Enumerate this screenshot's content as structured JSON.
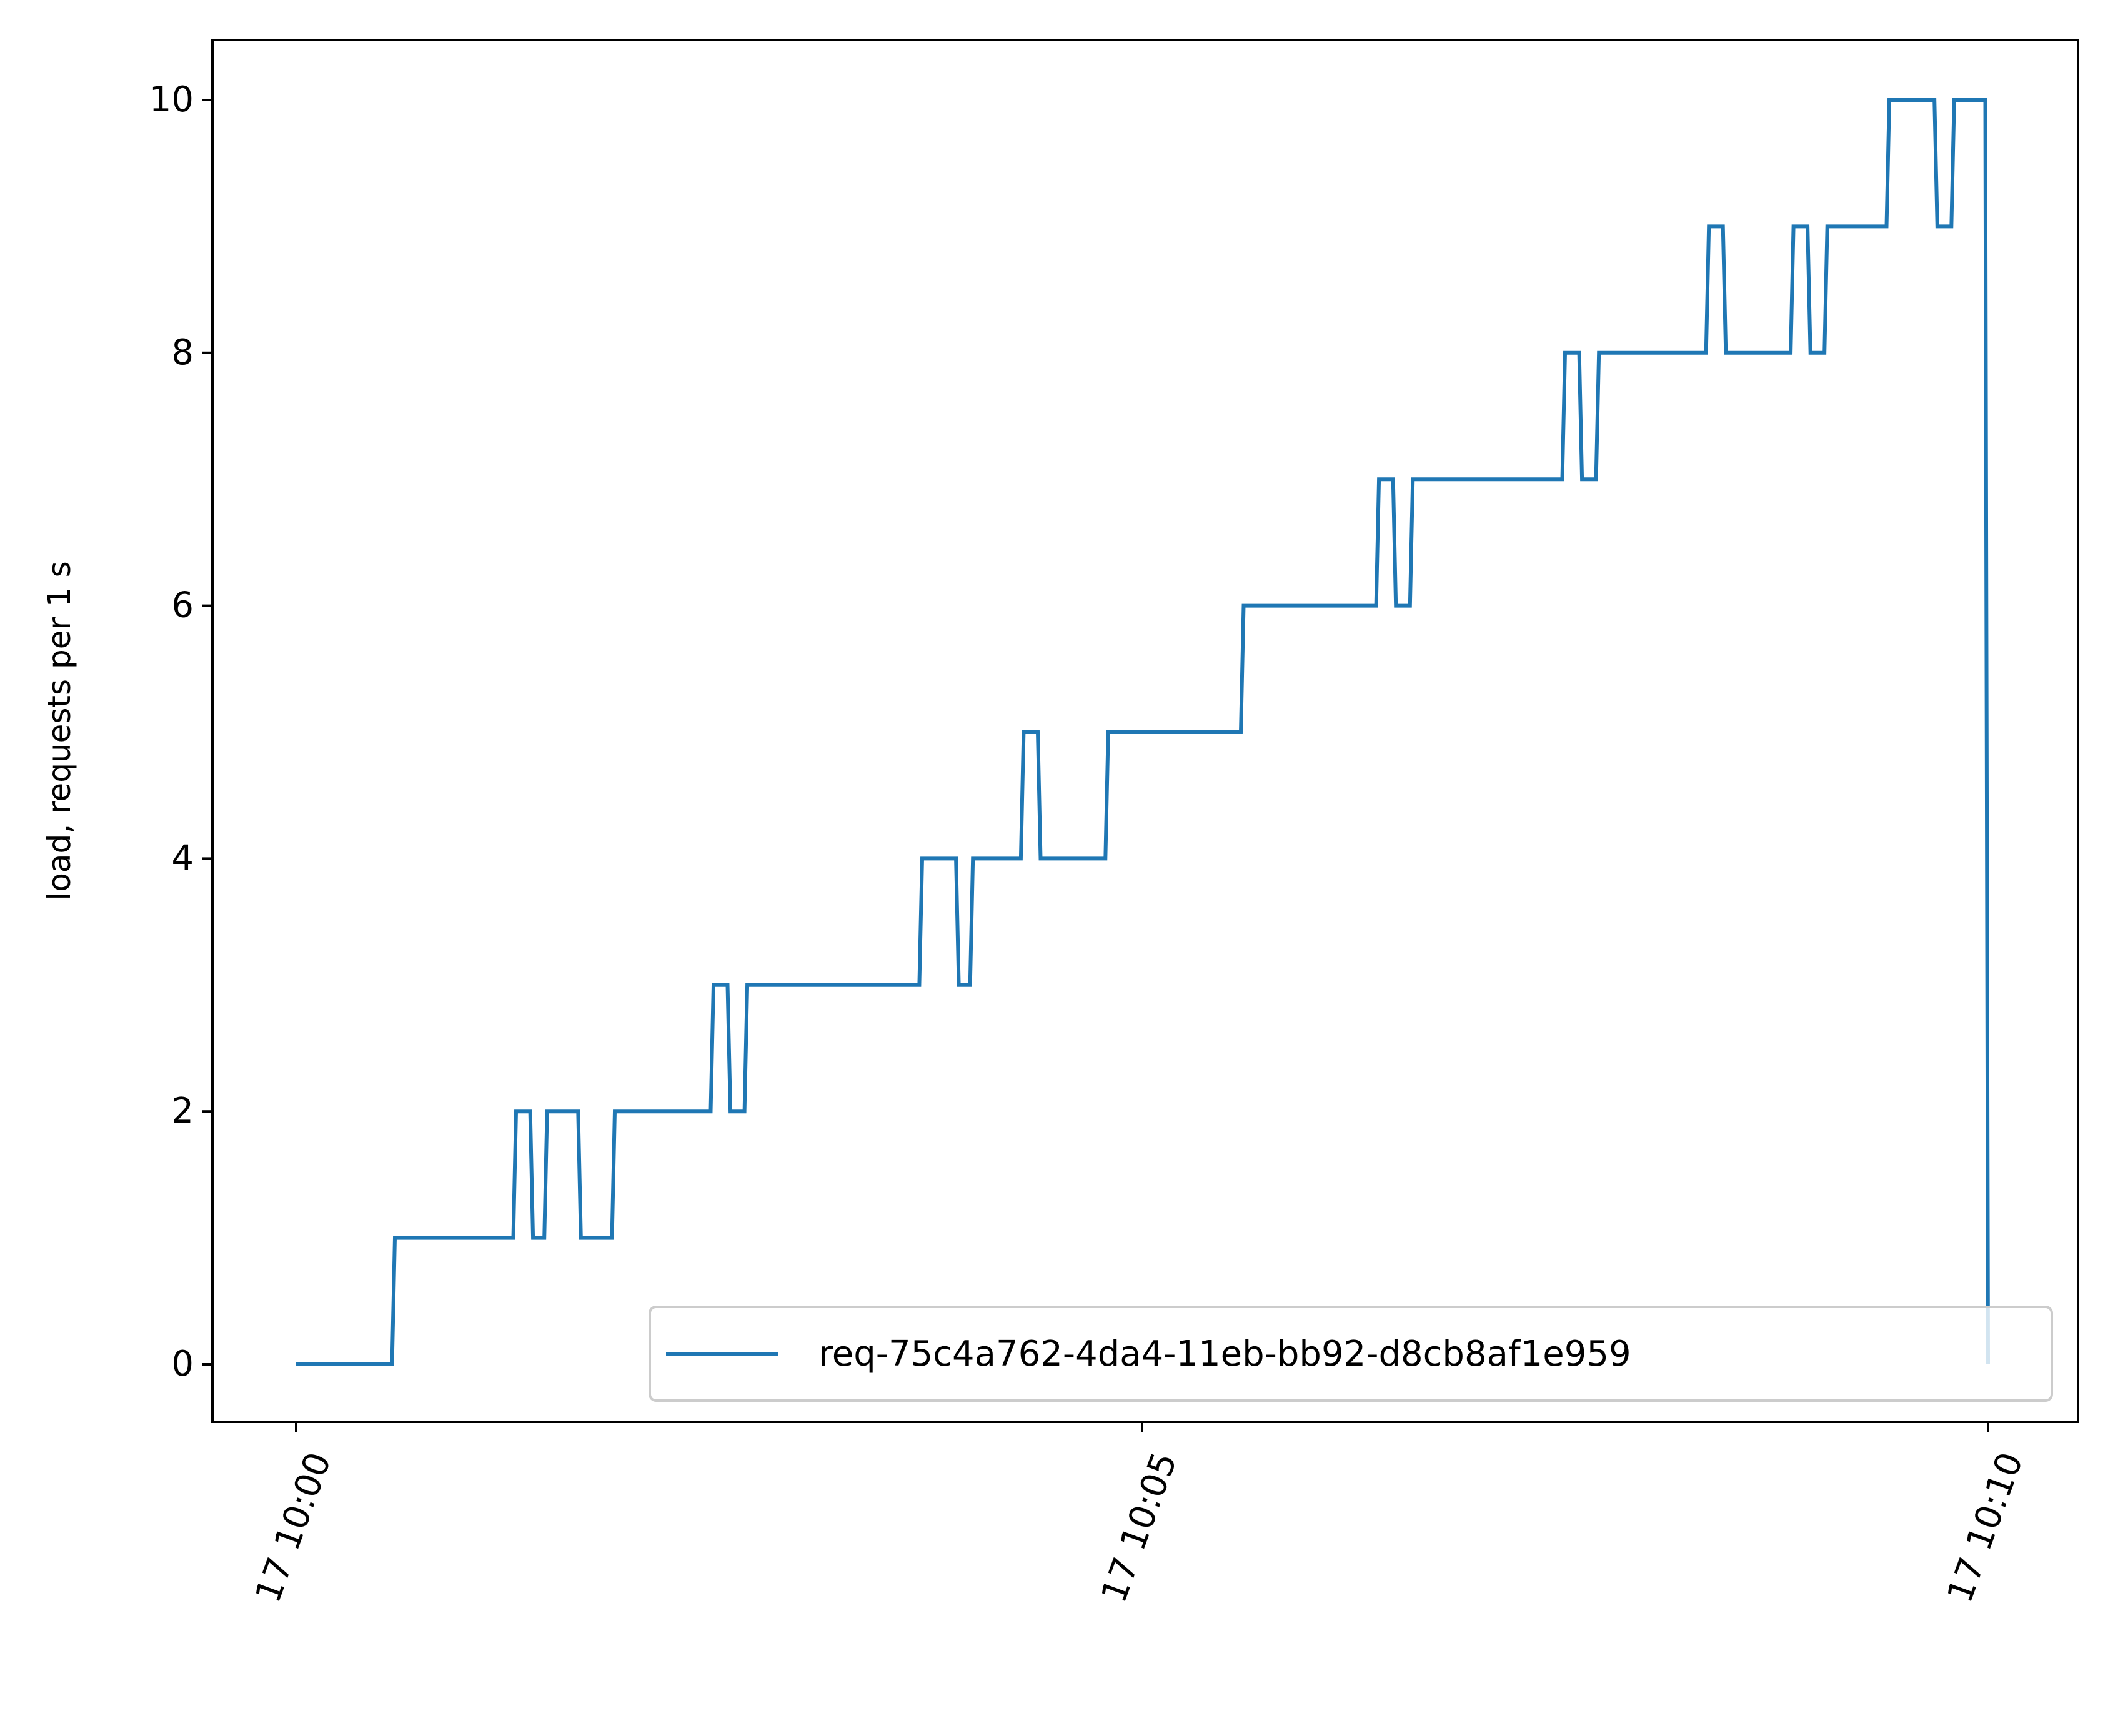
{
  "chart_data": {
    "type": "line",
    "title": "",
    "xlabel": "",
    "ylabel": "load, requests per 1 s",
    "xlim": [
      "10:00:00",
      "10:10:00"
    ],
    "ylim": [
      0,
      10
    ],
    "grid": false,
    "legend_position": "lower right",
    "x_ticks": [
      {
        "time": "10:00:00",
        "label": "17 10:00"
      },
      {
        "time": "10:05:00",
        "label": "17 10:05"
      },
      {
        "time": "10:10:00",
        "label": "17 10:10"
      }
    ],
    "y_ticks": [
      {
        "value": 0,
        "label": "0"
      },
      {
        "value": 2,
        "label": "2"
      },
      {
        "value": 4,
        "label": "4"
      },
      {
        "value": 6,
        "label": "6"
      },
      {
        "value": 8,
        "label": "8"
      },
      {
        "value": 10,
        "label": "10"
      }
    ],
    "series": [
      {
        "name": "req-75c4a762-4da4-11eb-bb92-d8cb8af1e959",
        "color": "#1f77b4",
        "step": true,
        "points": [
          [
            "10:00:00",
            0
          ],
          [
            "10:00:34",
            0
          ],
          [
            "10:00:35",
            1
          ],
          [
            "10:01:17",
            1
          ],
          [
            "10:01:18",
            2
          ],
          [
            "10:01:23",
            2
          ],
          [
            "10:01:24",
            1
          ],
          [
            "10:01:28",
            1
          ],
          [
            "10:01:29",
            2
          ],
          [
            "10:01:40",
            2
          ],
          [
            "10:01:41",
            1
          ],
          [
            "10:01:52",
            1
          ],
          [
            "10:01:53",
            2
          ],
          [
            "10:02:27",
            2
          ],
          [
            "10:02:28",
            3
          ],
          [
            "10:02:33",
            3
          ],
          [
            "10:02:34",
            2
          ],
          [
            "10:02:39",
            2
          ],
          [
            "10:02:40",
            3
          ],
          [
            "10:03:41",
            3
          ],
          [
            "10:03:42",
            4
          ],
          [
            "10:03:54",
            4
          ],
          [
            "10:03:55",
            3
          ],
          [
            "10:03:59",
            3
          ],
          [
            "10:04:00",
            4
          ],
          [
            "10:04:17",
            4
          ],
          [
            "10:04:18",
            5
          ],
          [
            "10:04:23",
            5
          ],
          [
            "10:04:24",
            4
          ],
          [
            "10:04:47",
            4
          ],
          [
            "10:04:48",
            5
          ],
          [
            "10:05:35",
            5
          ],
          [
            "10:05:36",
            6
          ],
          [
            "10:06:23",
            6
          ],
          [
            "10:06:24",
            7
          ],
          [
            "10:06:29",
            7
          ],
          [
            "10:06:30",
            6
          ],
          [
            "10:06:35",
            6
          ],
          [
            "10:06:36",
            7
          ],
          [
            "10:07:29",
            7
          ],
          [
            "10:07:30",
            8
          ],
          [
            "10:07:35",
            8
          ],
          [
            "10:07:36",
            7
          ],
          [
            "10:07:41",
            7
          ],
          [
            "10:07:42",
            8
          ],
          [
            "10:08:20",
            8
          ],
          [
            "10:08:21",
            9
          ],
          [
            "10:08:26",
            9
          ],
          [
            "10:08:27",
            8
          ],
          [
            "10:08:50",
            8
          ],
          [
            "10:08:51",
            9
          ],
          [
            "10:08:56",
            9
          ],
          [
            "10:08:57",
            8
          ],
          [
            "10:09:02",
            8
          ],
          [
            "10:09:03",
            9
          ],
          [
            "10:09:24",
            9
          ],
          [
            "10:09:25",
            10
          ],
          [
            "10:09:41",
            10
          ],
          [
            "10:09:42",
            9
          ],
          [
            "10:09:47",
            9
          ],
          [
            "10:09:48",
            10
          ],
          [
            "10:09:59",
            10
          ],
          [
            "10:10:00",
            0
          ]
        ]
      }
    ]
  }
}
